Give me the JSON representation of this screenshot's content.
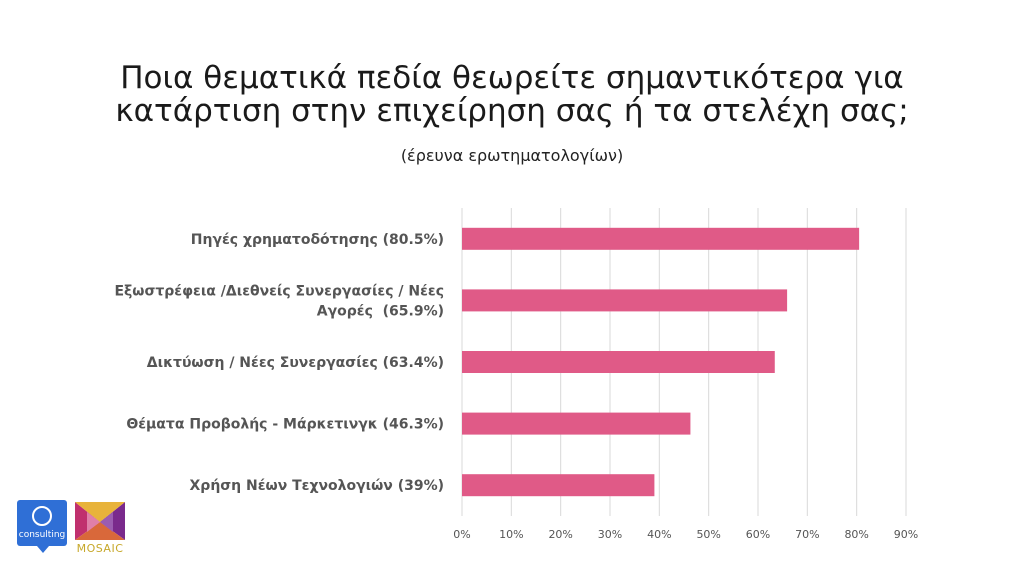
{
  "header": {
    "title_line1": "Ποια θεματικά πεδία θεωρείτε σημαντικότερα για",
    "title_line2": "κατάρτιση στην επιχείρηση σας ή τα στελέχη σας;",
    "subtitle": "(έρευνα ερωτηματολογίων)"
  },
  "chart_data": {
    "type": "bar",
    "orientation": "horizontal",
    "categories": [
      [
        "Πηγές χρηματοδότησης (80.5%)"
      ],
      [
        "Εξωστρέφεια /Διεθνείς Συνεργασίες / Νέες",
        "Αγορές  (65.9%)"
      ],
      [
        "Δικτύωση / Νέες Συνεργασίες (63.4%)"
      ],
      [
        "Θέματα Προβολής - Μάρκετινγκ (46.3%)"
      ],
      [
        "Χρήση Νέων Τεχνολογιών (39%)"
      ]
    ],
    "values": [
      80.5,
      65.9,
      63.4,
      46.3,
      39
    ],
    "xlim": [
      0,
      90
    ],
    "x_ticks": [
      "0%",
      "10%",
      "20%",
      "30%",
      "40%",
      "50%",
      "60%",
      "70%",
      "80%",
      "90%"
    ],
    "grid": true,
    "bar_color": "#e05a87"
  },
  "logos": {
    "consulting_text": "consulting",
    "mosaic_text": "MOSAIC"
  }
}
